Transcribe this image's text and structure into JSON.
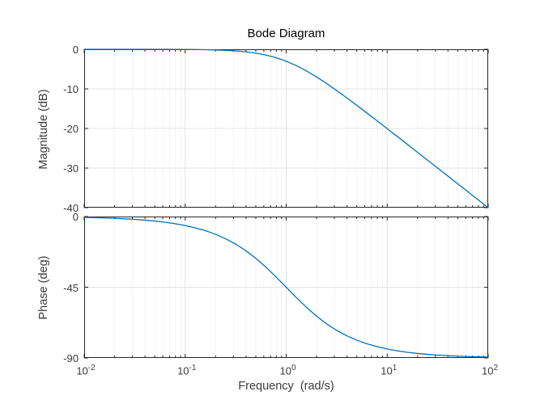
{
  "figure": {
    "title": "Bode Diagram",
    "background": "#ffffff"
  },
  "style": {
    "line_color": "#0072BD",
    "axis_color": "#262626",
    "grid_major_color": "#e3e3e3",
    "grid_minor_color": "#f4f4f4",
    "tick_label_color": "#3b3b3b"
  },
  "chart_data": [
    {
      "type": "line",
      "title": "Bode Diagram",
      "ylabel": "Magnitude (dB)",
      "xlabel": "",
      "xscale": "log",
      "xlim": [
        0.01,
        100
      ],
      "ylim": [
        -40,
        0
      ],
      "ytick_values": [
        0,
        -10,
        -20,
        -30,
        -40
      ],
      "ytick_labels": [
        "0",
        "-10",
        "-20",
        "-30",
        "-40"
      ],
      "xtick_values": [
        0.01,
        0.1,
        1,
        10,
        100
      ],
      "xtick_labels": [
        {
          "base": "10",
          "exp": "-2"
        },
        {
          "base": "10",
          "exp": "-1"
        },
        {
          "base": "10",
          "exp": "0"
        },
        {
          "base": "10",
          "exp": "1"
        },
        {
          "base": "10",
          "exp": "2"
        }
      ],
      "show_xtick_labels": false,
      "grid": true,
      "legend": "none",
      "series_name": "Magnitude",
      "x": [
        0.01,
        0.01259,
        0.01585,
        0.01995,
        0.02512,
        0.03162,
        0.03981,
        0.05012,
        0.0631,
        0.07943,
        0.1,
        0.1259,
        0.1585,
        0.1995,
        0.2512,
        0.3162,
        0.3981,
        0.5012,
        0.631,
        0.7943,
        1,
        1.259,
        1.585,
        1.995,
        2.512,
        3.162,
        3.981,
        5.012,
        6.31,
        7.943,
        10,
        12.59,
        15.85,
        19.95,
        25.12,
        31.62,
        39.81,
        50.12,
        63.1,
        79.43,
        100
      ],
      "y": [
        0.0,
        -0.001,
        -0.001,
        -0.002,
        -0.003,
        -0.004,
        -0.007,
        -0.011,
        -0.017,
        -0.027,
        -0.043,
        -0.068,
        -0.108,
        -0.17,
        -0.266,
        -0.414,
        -0.639,
        -0.973,
        -1.455,
        -2.125,
        -3.01,
        -4.124,
        -5.456,
        -6.973,
        -8.639,
        -10.414,
        -12.266,
        -14.17,
        -16.108,
        -18.069,
        -20.043,
        -22.028,
        -24.018,
        -26.011,
        -28.007,
        -30.004,
        -32.003,
        -34.002,
        -36.001,
        -38.001,
        -40.0
      ]
    },
    {
      "type": "line",
      "ylabel": "Phase (deg)",
      "xlabel": "Frequency  (rad/s)",
      "xscale": "log",
      "xlim": [
        0.01,
        100
      ],
      "ylim": [
        -90,
        0
      ],
      "ytick_values": [
        0,
        -45,
        -90
      ],
      "ytick_labels": [
        "0",
        "-45",
        "-90"
      ],
      "xtick_values": [
        0.01,
        0.1,
        1,
        10,
        100
      ],
      "xtick_labels": [
        {
          "base": "10",
          "exp": "-2"
        },
        {
          "base": "10",
          "exp": "-1"
        },
        {
          "base": "10",
          "exp": "0"
        },
        {
          "base": "10",
          "exp": "1"
        },
        {
          "base": "10",
          "exp": "2"
        }
      ],
      "show_xtick_labels": true,
      "grid": true,
      "legend": "none",
      "series_name": "Phase",
      "x": [
        0.01,
        0.01259,
        0.01585,
        0.01995,
        0.02512,
        0.03162,
        0.03981,
        0.05012,
        0.0631,
        0.07943,
        0.1,
        0.1259,
        0.1585,
        0.1995,
        0.2512,
        0.3162,
        0.3981,
        0.5012,
        0.631,
        0.7943,
        1,
        1.259,
        1.585,
        1.995,
        2.512,
        3.162,
        3.981,
        5.012,
        6.31,
        7.943,
        10,
        12.59,
        15.85,
        19.95,
        25.12,
        31.62,
        39.81,
        50.12,
        63.1,
        79.43,
        100
      ],
      "y": [
        -0.573,
        -0.721,
        -0.908,
        -1.143,
        -1.439,
        -1.811,
        -2.279,
        -2.869,
        -3.611,
        -4.541,
        -5.711,
        -7.175,
        -9.007,
        -11.285,
        -14.105,
        -17.548,
        -21.692,
        -26.61,
        -32.249,
        -38.461,
        -45.0,
        -51.539,
        -57.751,
        -63.39,
        -68.308,
        -72.452,
        -75.895,
        -78.72,
        -80.993,
        -82.824,
        -84.289,
        -85.458,
        -86.389,
        -87.13,
        -87.721,
        -88.188,
        -88.562,
        -88.857,
        -89.092,
        -89.279,
        -89.427
      ]
    }
  ]
}
